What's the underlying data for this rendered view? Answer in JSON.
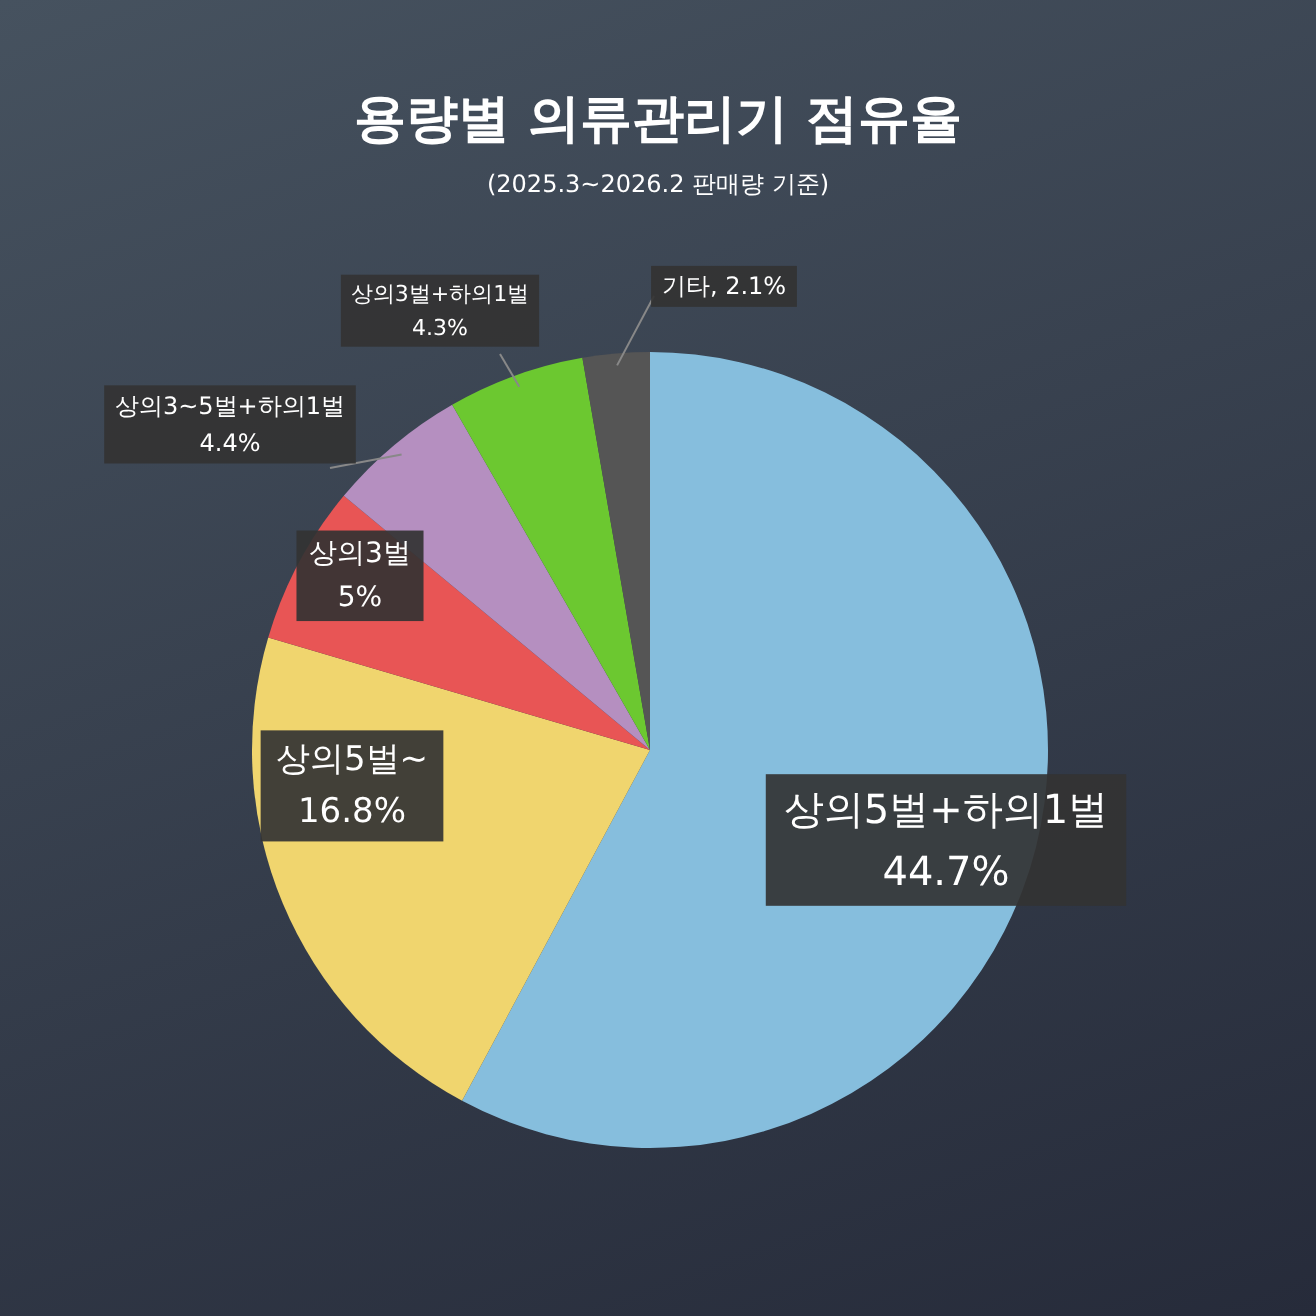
{
  "chart_data": {
    "type": "pie",
    "title": "용량별 의류관리기 점유율",
    "subtitle": "(2025.3~2026.2 판매량 기준)",
    "categories": [
      "상의5벌+하의1벌",
      "상의5벌~",
      "상의3벌",
      "상의3~5벌+하의1벌",
      "상의3벌+하의1벌",
      "기타"
    ],
    "values": [
      44.7,
      16.8,
      5,
      4.4,
      4.3,
      2.1
    ],
    "colors": [
      "#86bedd",
      "#f0d56e",
      "#e85555",
      "#b58fc0",
      "#6cc830",
      "#555555"
    ],
    "value_labels": [
      "44.7%",
      "16.8%",
      "5%",
      "4.4%",
      "4.3%",
      "2.1%"
    ]
  }
}
